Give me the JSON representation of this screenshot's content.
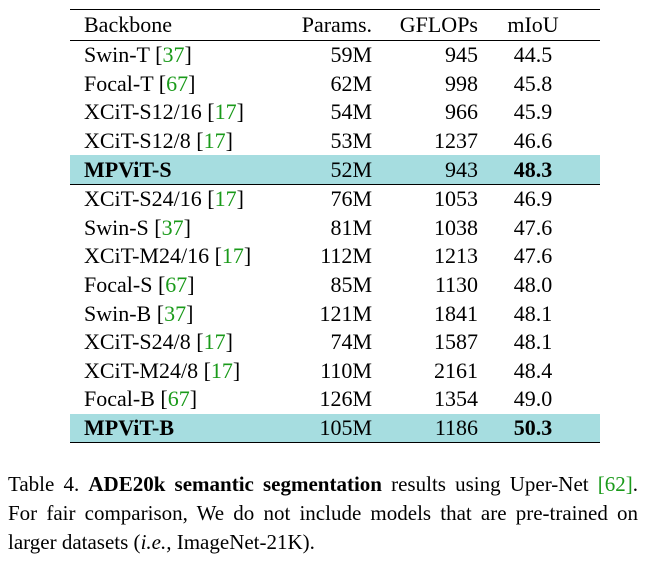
{
  "table": {
    "headers": {
      "backbone": "Backbone",
      "params": "Params.",
      "gflops": "GFLOPs",
      "miou": "mIoU"
    },
    "groups": [
      {
        "rows": [
          {
            "name": "Swin-T",
            "cite": "37",
            "params": "59M",
            "gflops": "945",
            "miou": "44.5"
          },
          {
            "name": "Focal-T",
            "cite": "67",
            "params": "62M",
            "gflops": "998",
            "miou": "45.8"
          },
          {
            "name": "XCiT-S12/16",
            "cite": "17",
            "params": "54M",
            "gflops": "966",
            "miou": "45.9"
          },
          {
            "name": "XCiT-S12/8",
            "cite": "17",
            "params": "53M",
            "gflops": "1237",
            "miou": "46.6"
          }
        ],
        "highlight": {
          "name": "MPViT-S",
          "params": "52M",
          "gflops": "943",
          "miou": "48.3"
        }
      },
      {
        "rows": [
          {
            "name": "XCiT-S24/16",
            "cite": "17",
            "params": "76M",
            "gflops": "1053",
            "miou": "46.9"
          },
          {
            "name": "Swin-S",
            "cite": "37",
            "params": "81M",
            "gflops": "1038",
            "miou": "47.6"
          },
          {
            "name": "XCiT-M24/16",
            "cite": "17",
            "params": "112M",
            "gflops": "1213",
            "miou": "47.6"
          },
          {
            "name": "Focal-S",
            "cite": "67",
            "params": "85M",
            "gflops": "1130",
            "miou": "48.0"
          },
          {
            "name": "Swin-B",
            "cite": "37",
            "params": "121M",
            "gflops": "1841",
            "miou": "48.1"
          },
          {
            "name": "XCiT-S24/8",
            "cite": "17",
            "params": "74M",
            "gflops": "1587",
            "miou": "48.1"
          },
          {
            "name": "XCiT-M24/8",
            "cite": "17",
            "params": "110M",
            "gflops": "2161",
            "miou": "48.4"
          },
          {
            "name": "Focal-B",
            "cite": "67",
            "params": "126M",
            "gflops": "1354",
            "miou": "49.0"
          }
        ],
        "highlight": {
          "name": "MPViT-B",
          "params": "105M",
          "gflops": "1186",
          "miou": "50.3"
        }
      }
    ]
  },
  "caption": {
    "label": "Table 4.",
    "bold": "ADE20k semantic segmentation",
    "text1": " results using Uper-Net ",
    "cite": "[62]",
    "text2": ". For fair comparison, We do not include models that are pre-trained on larger datasets (",
    "italic": "i.e.,",
    "text3": " ImageNet-21K)."
  },
  "colors": {
    "highlight_row": "#a6dde0",
    "citation": "#1a9a1a"
  }
}
